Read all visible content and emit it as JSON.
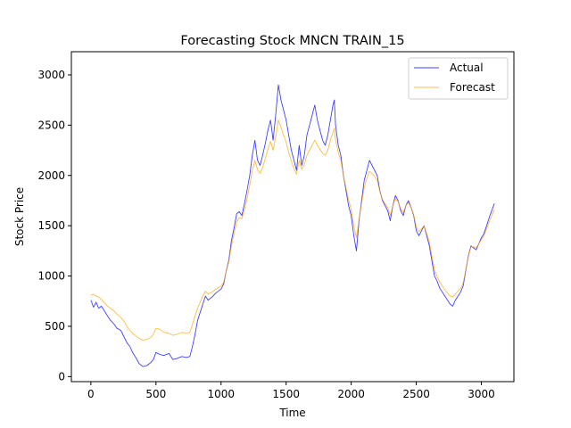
{
  "chart_data": {
    "type": "line",
    "title": "Forecasting Stock MNCN TRAIN_15",
    "xlabel": "Time",
    "ylabel": "Stock Price",
    "xlim": [
      -150,
      3250
    ],
    "ylim": [
      -50,
      3230
    ],
    "xticks": [
      0,
      500,
      1000,
      1500,
      2000,
      2500,
      3000
    ],
    "yticks": [
      0,
      500,
      1000,
      1500,
      2000,
      2500,
      3000
    ],
    "grid": false,
    "legend_position": "top-right",
    "series": [
      {
        "name": "Actual",
        "color": "#0000ff",
        "points": [
          [
            0,
            760
          ],
          [
            20,
            690
          ],
          [
            40,
            740
          ],
          [
            60,
            680
          ],
          [
            80,
            700
          ],
          [
            100,
            660
          ],
          [
            130,
            600
          ],
          [
            150,
            560
          ],
          [
            180,
            520
          ],
          [
            200,
            480
          ],
          [
            230,
            460
          ],
          [
            260,
            380
          ],
          [
            280,
            330
          ],
          [
            300,
            300
          ],
          [
            320,
            240
          ],
          [
            350,
            180
          ],
          [
            370,
            130
          ],
          [
            400,
            100
          ],
          [
            430,
            110
          ],
          [
            460,
            140
          ],
          [
            480,
            170
          ],
          [
            500,
            240
          ],
          [
            530,
            220
          ],
          [
            560,
            210
          ],
          [
            600,
            230
          ],
          [
            630,
            170
          ],
          [
            660,
            180
          ],
          [
            700,
            200
          ],
          [
            730,
            190
          ],
          [
            760,
            200
          ],
          [
            780,
            300
          ],
          [
            800,
            420
          ],
          [
            820,
            560
          ],
          [
            840,
            640
          ],
          [
            860,
            720
          ],
          [
            880,
            800
          ],
          [
            900,
            760
          ],
          [
            930,
            790
          ],
          [
            960,
            830
          ],
          [
            1000,
            870
          ],
          [
            1020,
            920
          ],
          [
            1040,
            1050
          ],
          [
            1060,
            1160
          ],
          [
            1080,
            1350
          ],
          [
            1100,
            1480
          ],
          [
            1120,
            1620
          ],
          [
            1140,
            1640
          ],
          [
            1160,
            1600
          ],
          [
            1180,
            1720
          ],
          [
            1200,
            1850
          ],
          [
            1220,
            2000
          ],
          [
            1240,
            2200
          ],
          [
            1260,
            2350
          ],
          [
            1280,
            2150
          ],
          [
            1300,
            2100
          ],
          [
            1320,
            2200
          ],
          [
            1340,
            2320
          ],
          [
            1360,
            2450
          ],
          [
            1380,
            2550
          ],
          [
            1400,
            2350
          ],
          [
            1420,
            2600
          ],
          [
            1440,
            2900
          ],
          [
            1460,
            2750
          ],
          [
            1480,
            2650
          ],
          [
            1500,
            2550
          ],
          [
            1520,
            2400
          ],
          [
            1540,
            2250
          ],
          [
            1560,
            2150
          ],
          [
            1580,
            2050
          ],
          [
            1600,
            2300
          ],
          [
            1620,
            2100
          ],
          [
            1640,
            2200
          ],
          [
            1660,
            2400
          ],
          [
            1680,
            2500
          ],
          [
            1700,
            2600
          ],
          [
            1720,
            2700
          ],
          [
            1740,
            2550
          ],
          [
            1760,
            2450
          ],
          [
            1780,
            2350
          ],
          [
            1800,
            2300
          ],
          [
            1820,
            2400
          ],
          [
            1840,
            2550
          ],
          [
            1860,
            2700
          ],
          [
            1870,
            2750
          ],
          [
            1880,
            2500
          ],
          [
            1900,
            2300
          ],
          [
            1920,
            2200
          ],
          [
            1940,
            2000
          ],
          [
            1960,
            1850
          ],
          [
            1980,
            1700
          ],
          [
            2000,
            1600
          ],
          [
            2020,
            1400
          ],
          [
            2040,
            1250
          ],
          [
            2060,
            1550
          ],
          [
            2080,
            1750
          ],
          [
            2100,
            1950
          ],
          [
            2120,
            2050
          ],
          [
            2140,
            2150
          ],
          [
            2160,
            2100
          ],
          [
            2180,
            2050
          ],
          [
            2200,
            2000
          ],
          [
            2220,
            1850
          ],
          [
            2240,
            1750
          ],
          [
            2260,
            1700
          ],
          [
            2280,
            1650
          ],
          [
            2300,
            1550
          ],
          [
            2320,
            1700
          ],
          [
            2340,
            1800
          ],
          [
            2360,
            1750
          ],
          [
            2380,
            1650
          ],
          [
            2400,
            1600
          ],
          [
            2420,
            1700
          ],
          [
            2440,
            1750
          ],
          [
            2460,
            1680
          ],
          [
            2480,
            1600
          ],
          [
            2500,
            1450
          ],
          [
            2520,
            1400
          ],
          [
            2540,
            1450
          ],
          [
            2560,
            1500
          ],
          [
            2580,
            1400
          ],
          [
            2600,
            1300
          ],
          [
            2620,
            1150
          ],
          [
            2640,
            1000
          ],
          [
            2660,
            950
          ],
          [
            2680,
            880
          ],
          [
            2700,
            840
          ],
          [
            2720,
            800
          ],
          [
            2740,
            760
          ],
          [
            2760,
            720
          ],
          [
            2780,
            700
          ],
          [
            2800,
            760
          ],
          [
            2820,
            800
          ],
          [
            2840,
            840
          ],
          [
            2860,
            900
          ],
          [
            2880,
            1050
          ],
          [
            2900,
            1200
          ],
          [
            2920,
            1300
          ],
          [
            2940,
            1280
          ],
          [
            2960,
            1260
          ],
          [
            2980,
            1320
          ],
          [
            3000,
            1380
          ],
          [
            3020,
            1420
          ],
          [
            3040,
            1500
          ],
          [
            3060,
            1580
          ],
          [
            3080,
            1650
          ],
          [
            3100,
            1720
          ]
        ]
      },
      {
        "name": "Forecast",
        "color": "#ffa500",
        "points": [
          [
            0,
            810
          ],
          [
            20,
            820
          ],
          [
            40,
            800
          ],
          [
            60,
            790
          ],
          [
            80,
            770
          ],
          [
            100,
            740
          ],
          [
            130,
            700
          ],
          [
            150,
            680
          ],
          [
            180,
            650
          ],
          [
            200,
            620
          ],
          [
            230,
            590
          ],
          [
            260,
            540
          ],
          [
            280,
            490
          ],
          [
            300,
            460
          ],
          [
            320,
            430
          ],
          [
            350,
            400
          ],
          [
            370,
            380
          ],
          [
            400,
            360
          ],
          [
            430,
            370
          ],
          [
            460,
            390
          ],
          [
            480,
            420
          ],
          [
            500,
            480
          ],
          [
            530,
            470
          ],
          [
            560,
            440
          ],
          [
            600,
            430
          ],
          [
            630,
            410
          ],
          [
            660,
            420
          ],
          [
            700,
            440
          ],
          [
            730,
            430
          ],
          [
            760,
            440
          ],
          [
            780,
            520
          ],
          [
            800,
            600
          ],
          [
            820,
            680
          ],
          [
            840,
            740
          ],
          [
            860,
            800
          ],
          [
            880,
            850
          ],
          [
            900,
            820
          ],
          [
            930,
            840
          ],
          [
            960,
            870
          ],
          [
            1000,
            900
          ],
          [
            1020,
            940
          ],
          [
            1040,
            1050
          ],
          [
            1060,
            1140
          ],
          [
            1080,
            1300
          ],
          [
            1100,
            1420
          ],
          [
            1120,
            1540
          ],
          [
            1140,
            1580
          ],
          [
            1160,
            1570
          ],
          [
            1180,
            1660
          ],
          [
            1200,
            1770
          ],
          [
            1220,
            1900
          ],
          [
            1240,
            2050
          ],
          [
            1260,
            2150
          ],
          [
            1280,
            2060
          ],
          [
            1300,
            2020
          ],
          [
            1320,
            2080
          ],
          [
            1340,
            2170
          ],
          [
            1360,
            2260
          ],
          [
            1380,
            2340
          ],
          [
            1400,
            2250
          ],
          [
            1420,
            2380
          ],
          [
            1440,
            2550
          ],
          [
            1460,
            2480
          ],
          [
            1480,
            2400
          ],
          [
            1500,
            2330
          ],
          [
            1520,
            2230
          ],
          [
            1540,
            2140
          ],
          [
            1560,
            2070
          ],
          [
            1580,
            2010
          ],
          [
            1600,
            2150
          ],
          [
            1620,
            2060
          ],
          [
            1640,
            2110
          ],
          [
            1660,
            2200
          ],
          [
            1680,
            2250
          ],
          [
            1700,
            2300
          ],
          [
            1720,
            2350
          ],
          [
            1740,
            2300
          ],
          [
            1760,
            2260
          ],
          [
            1780,
            2220
          ],
          [
            1800,
            2200
          ],
          [
            1820,
            2250
          ],
          [
            1840,
            2350
          ],
          [
            1860,
            2430
          ],
          [
            1870,
            2470
          ],
          [
            1880,
            2350
          ],
          [
            1900,
            2230
          ],
          [
            1920,
            2150
          ],
          [
            1940,
            2000
          ],
          [
            1960,
            1880
          ],
          [
            1980,
            1760
          ],
          [
            2000,
            1660
          ],
          [
            2020,
            1500
          ],
          [
            2040,
            1380
          ],
          [
            2060,
            1560
          ],
          [
            2080,
            1720
          ],
          [
            2100,
            1880
          ],
          [
            2120,
            1970
          ],
          [
            2140,
            2040
          ],
          [
            2160,
            2020
          ],
          [
            2180,
            1990
          ],
          [
            2200,
            1950
          ],
          [
            2220,
            1840
          ],
          [
            2240,
            1760
          ],
          [
            2260,
            1720
          ],
          [
            2280,
            1680
          ],
          [
            2300,
            1600
          ],
          [
            2320,
            1700
          ],
          [
            2340,
            1770
          ],
          [
            2360,
            1740
          ],
          [
            2380,
            1670
          ],
          [
            2400,
            1630
          ],
          [
            2420,
            1700
          ],
          [
            2440,
            1730
          ],
          [
            2460,
            1680
          ],
          [
            2480,
            1610
          ],
          [
            2500,
            1490
          ],
          [
            2520,
            1440
          ],
          [
            2540,
            1470
          ],
          [
            2560,
            1500
          ],
          [
            2580,
            1420
          ],
          [
            2600,
            1340
          ],
          [
            2620,
            1200
          ],
          [
            2640,
            1060
          ],
          [
            2660,
            1000
          ],
          [
            2680,
            940
          ],
          [
            2700,
            900
          ],
          [
            2720,
            860
          ],
          [
            2740,
            830
          ],
          [
            2760,
            800
          ],
          [
            2780,
            790
          ],
          [
            2800,
            820
          ],
          [
            2820,
            850
          ],
          [
            2840,
            880
          ],
          [
            2860,
            930
          ],
          [
            2880,
            1060
          ],
          [
            2900,
            1190
          ],
          [
            2920,
            1290
          ],
          [
            2940,
            1290
          ],
          [
            2960,
            1280
          ],
          [
            2980,
            1320
          ],
          [
            3000,
            1360
          ],
          [
            3020,
            1400
          ],
          [
            3040,
            1470
          ],
          [
            3060,
            1540
          ],
          [
            3080,
            1600
          ],
          [
            3100,
            1660
          ]
        ]
      }
    ]
  }
}
